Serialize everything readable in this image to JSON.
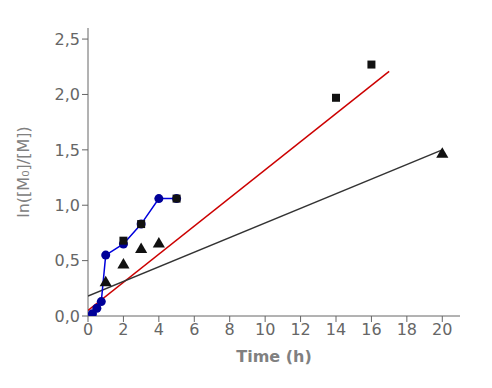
{
  "chart_data": {
    "type": "scatter",
    "x_label": "Time (h)",
    "y_label": "ln([M₀]/[M])",
    "xlim": [
      0,
      21
    ],
    "ylim": [
      0.0,
      2.6
    ],
    "xticks": [
      0,
      2,
      4,
      6,
      8,
      10,
      12,
      14,
      16,
      18,
      20
    ],
    "yticks": [
      {
        "value": 0.0,
        "label": "0,0"
      },
      {
        "value": 0.5,
        "label": "0,5"
      },
      {
        "value": 1.0,
        "label": "1,0"
      },
      {
        "value": 1.5,
        "label": "1,5"
      },
      {
        "value": 2.0,
        "label": "2,0"
      },
      {
        "value": 2.5,
        "label": "2,5"
      }
    ],
    "grid": false,
    "series": [
      {
        "type": "line",
        "color": "#cc0000",
        "line_style": "solid",
        "x": [
          0.0,
          17.0
        ],
        "values": [
          0.05,
          2.209
        ]
      },
      {
        "type": "line",
        "color": "#333333",
        "line_style": "solid",
        "x": [
          0.0,
          20.0
        ],
        "values": [
          0.18,
          1.5
        ]
      },
      {
        "type": "line",
        "color": "#0000dd",
        "line_style": "solid",
        "x": [
          0.25,
          0.5,
          0.75,
          1.0,
          2.0,
          3.0,
          4.0,
          5.0
        ],
        "values": [
          0.02,
          0.07,
          0.13,
          0.55,
          0.65,
          0.83,
          1.06,
          1.06
        ]
      },
      {
        "type": "scatter",
        "color": "#000099",
        "marker": "circle",
        "x": [
          0.25,
          0.5,
          0.75,
          1.0,
          2.0,
          3.0,
          4.0,
          5.0
        ],
        "values": [
          0.02,
          0.07,
          0.13,
          0.55,
          0.65,
          0.83,
          1.06,
          1.06
        ]
      },
      {
        "type": "scatter",
        "color": "#111111",
        "marker": "square",
        "x": [
          2.0,
          3.0,
          5.0,
          14.0,
          16.0
        ],
        "values": [
          0.68,
          0.83,
          1.06,
          1.97,
          2.27
        ]
      },
      {
        "type": "scatter",
        "color": "#111111",
        "marker": "triangle",
        "x": [
          1.0,
          2.0,
          3.0,
          4.0,
          20.0
        ],
        "values": [
          0.3,
          0.46,
          0.6,
          0.65,
          1.46
        ]
      }
    ]
  }
}
